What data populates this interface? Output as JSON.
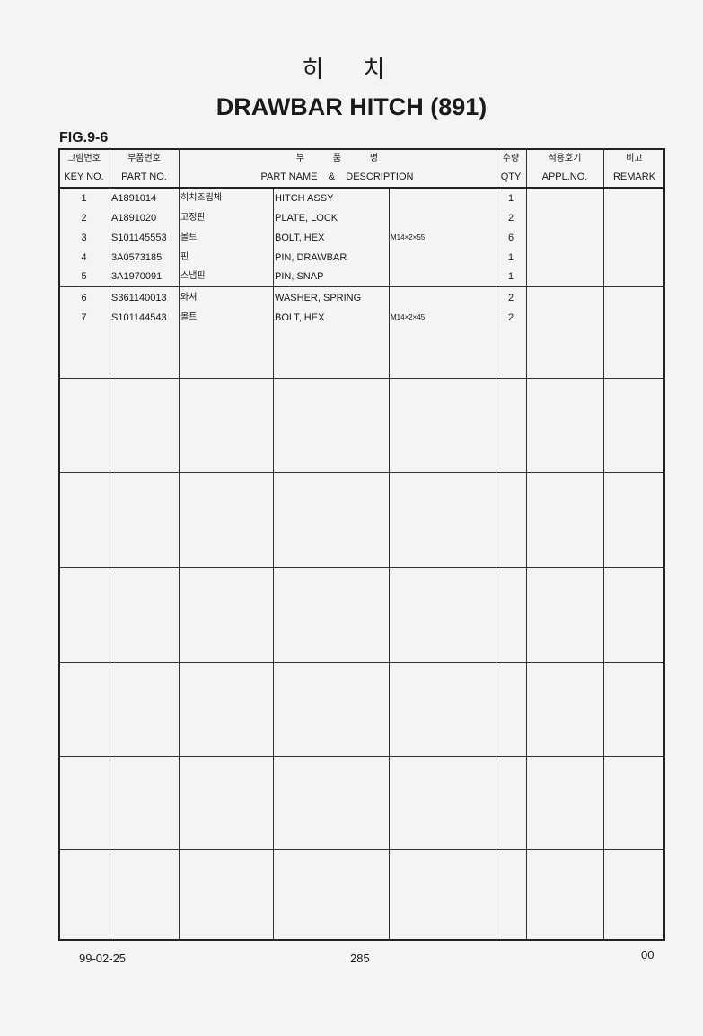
{
  "title_korean": "히 치",
  "title": "DRAWBAR HITCH (891)",
  "figure": "FIG.9-6",
  "headers": {
    "key_no": {
      "kr": "그림번호",
      "en": "KEY NO."
    },
    "part_no": {
      "kr": "부품번호",
      "en": "PART NO."
    },
    "description": {
      "kr": "부          품          명",
      "en": "PART NAME    &    DESCRIPTION"
    },
    "qty": {
      "kr": "수량",
      "en": "QTY"
    },
    "appl_no": {
      "kr": "적용호기",
      "en": "APPL.NO."
    },
    "remark": {
      "kr": "비고",
      "en": "REMARK"
    }
  },
  "rows": [
    {
      "key": "1",
      "part_no": "A1891014",
      "name_kr": "히치조립체",
      "name_en": "HITCH ASSY",
      "spec": "",
      "qty": "1"
    },
    {
      "key": "2",
      "part_no": "A1891020",
      "name_kr": "고정판",
      "name_en": "PLATE, LOCK",
      "spec": "",
      "qty": "2"
    },
    {
      "key": "3",
      "part_no": "S101145553",
      "name_kr": "볼트",
      "name_en": "BOLT, HEX",
      "spec": "M14×2×55",
      "qty": "6"
    },
    {
      "key": "4",
      "part_no": "3A0573185",
      "name_kr": "핀",
      "name_en": "PIN, DRAWBAR",
      "spec": "",
      "qty": "1"
    },
    {
      "key": "5",
      "part_no": "3A1970091",
      "name_kr": "스냅핀",
      "name_en": "PIN, SNAP",
      "spec": "",
      "qty": "1"
    },
    {
      "key": "6",
      "part_no": "S361140013",
      "name_kr": "와셔",
      "name_en": "WASHER, SPRING",
      "spec": "",
      "qty": "2"
    },
    {
      "key": "7",
      "part_no": "S101144543",
      "name_kr": "볼트",
      "name_en": "BOLT, HEX",
      "spec": "M14×2×45",
      "qty": "2"
    }
  ],
  "footer": {
    "date": "99-02-25",
    "page": "285",
    "revision": "00"
  }
}
